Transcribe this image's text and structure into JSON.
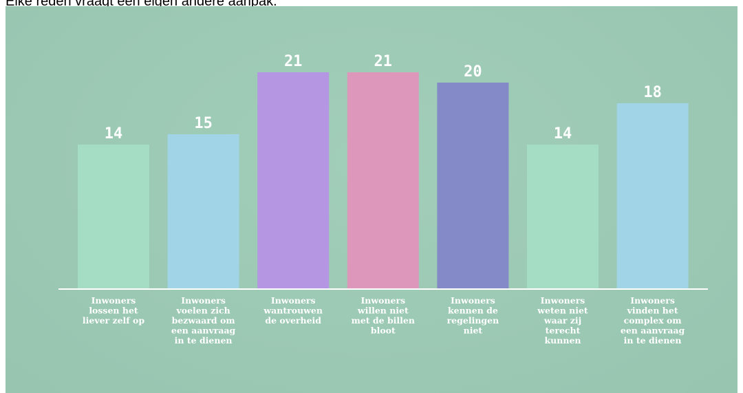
{
  "caption": "Elke reden vraagt een eigen andere aanpak.",
  "chart_data": {
    "type": "bar",
    "categories": [
      [
        "Inwoners",
        "lossen het",
        "liever zelf op"
      ],
      [
        "Inwoners",
        "voelen zich",
        "bezwaard om",
        "een aanvraag",
        "in te dienen"
      ],
      [
        "Inwoners",
        "wantrouwen",
        "de overheid"
      ],
      [
        "Inwoners",
        "willen niet",
        "met de billen",
        "bloot"
      ],
      [
        "Inwoners",
        "kennen de",
        "regelingen",
        "niet"
      ],
      [
        "Inwoners",
        "weten niet",
        "waar zij",
        "terecht",
        "kunnen"
      ],
      [
        "Inwoners",
        "vinden het",
        "complex om",
        "een aanvraag",
        "in te dienen"
      ]
    ],
    "values": [
      14,
      15,
      21,
      21,
      20,
      14,
      18
    ],
    "colors": [
      "#a5ddc4",
      "#a0d4e6",
      "#b596e3",
      "#dd97bb",
      "#8489c7",
      "#a5ddc4",
      "#a0d4e6"
    ],
    "background": "#9ccbb5",
    "baseline_color": "#ffffff",
    "ylim": [
      0,
      22.4
    ],
    "grid": false,
    "legend": "none"
  }
}
